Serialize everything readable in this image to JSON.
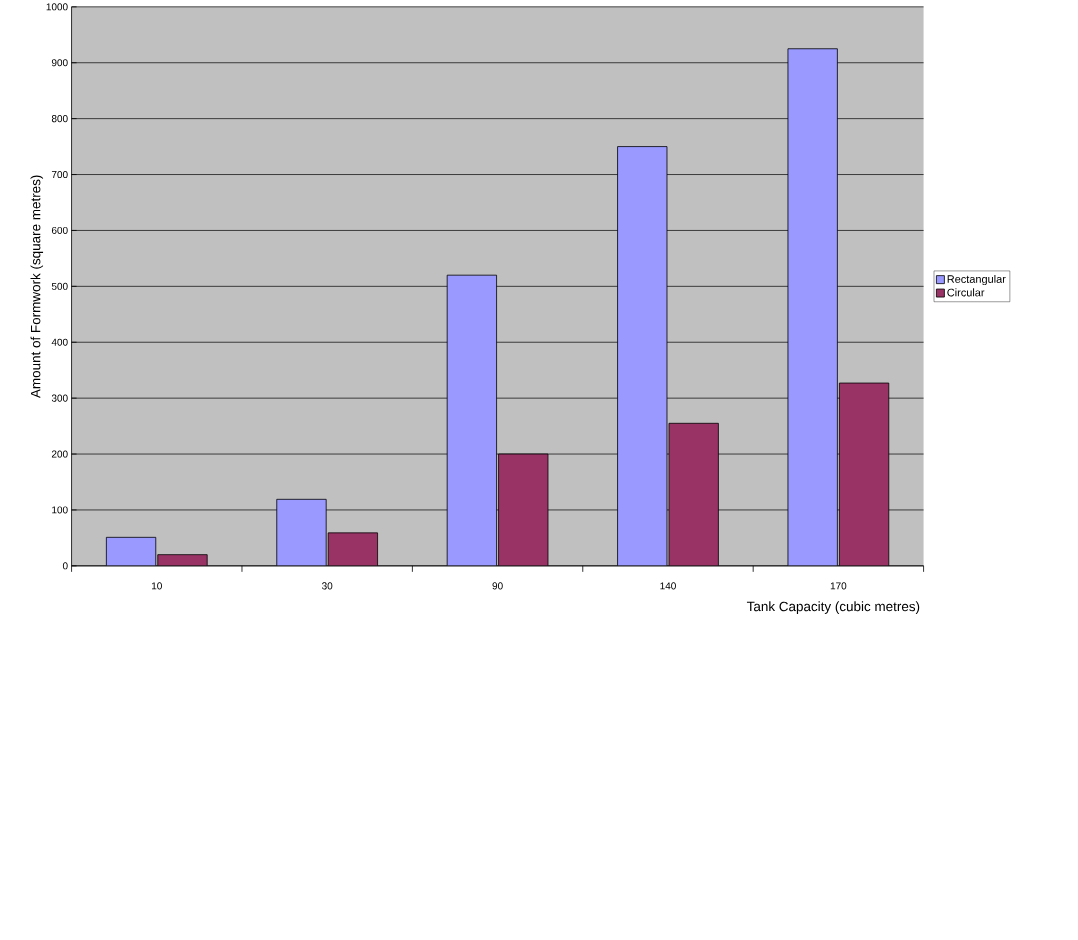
{
  "chart_data": {
    "type": "bar",
    "xlabel": "Tank Capacity (cubic metres)",
    "ylabel": "Amount of Formwork (square metres)",
    "categories": [
      "10",
      "30",
      "90",
      "140",
      "170"
    ],
    "series": [
      {
        "name": "Rectangular",
        "color": "#9999ff",
        "values": [
          51,
          119,
          520,
          750,
          925
        ]
      },
      {
        "name": "Circular",
        "color": "#993366",
        "values": [
          20,
          59,
          200,
          255,
          327
        ]
      }
    ],
    "ylim": [
      0,
      1000
    ],
    "yticks": [
      0,
      100,
      200,
      300,
      400,
      500,
      600,
      700,
      800,
      900,
      1000
    ],
    "grid": "y",
    "legend": "right"
  }
}
